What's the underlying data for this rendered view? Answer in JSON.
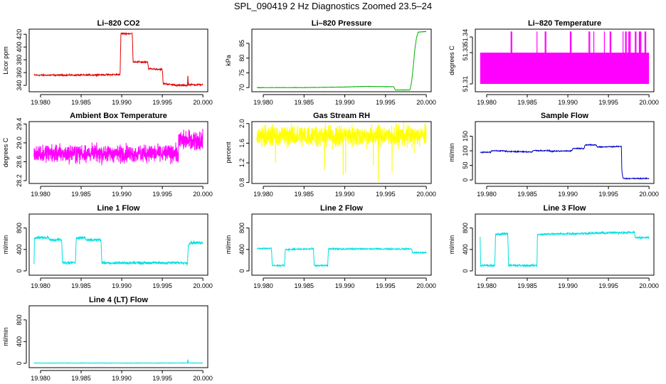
{
  "page_title": "SPL_090419  2 Hz Diagnostics Zoomed 23.5–24",
  "chart_data": [
    {
      "type": "line",
      "title": "Li–820 CO2",
      "ylabel": "Licor ppm",
      "color": "#e00000",
      "xlim": [
        19.9786,
        20.0006
      ],
      "ylim": [
        330,
        428
      ],
      "xticks": [
        "19.980",
        "19.985",
        "19.990",
        "19.995",
        "20.000"
      ],
      "xtick_values": [
        19.98,
        19.985,
        19.99,
        19.995,
        20.0
      ],
      "yticks": [
        "340",
        "360",
        "380",
        "400",
        "420"
      ],
      "ytick_values": [
        340,
        360,
        380,
        400,
        420
      ],
      "noise": 1.0,
      "series": [
        {
          "name": "CO2",
          "x": [
            19.9792,
            19.98,
            19.985,
            19.9898,
            19.9899,
            19.9913,
            19.9914,
            19.9932,
            19.9933,
            19.995,
            19.9951,
            19.9962,
            19.997,
            19.9981,
            19.99815,
            19.9982,
            20.0
          ],
          "y": [
            356,
            356,
            356,
            357,
            421,
            421,
            377,
            376,
            366,
            365,
            343,
            341,
            340,
            340,
            357,
            341,
            341
          ]
        }
      ]
    },
    {
      "type": "line",
      "title": "Li–820 Pressure",
      "ylabel": "kPa",
      "color": "#00b000",
      "xlim": [
        19.9786,
        20.0006
      ],
      "ylim": [
        68.6,
        89.8
      ],
      "xticks": [
        "19.980",
        "19.985",
        "19.990",
        "19.995",
        "20.000"
      ],
      "xtick_values": [
        19.98,
        19.985,
        19.99,
        19.995,
        20.0
      ],
      "yticks": [
        "70",
        "75",
        "80",
        "85"
      ],
      "ytick_values": [
        70,
        75,
        80,
        85
      ],
      "noise": 0.05,
      "series": [
        {
          "name": "Pressure",
          "x": [
            19.9792,
            19.985,
            19.99,
            19.9925,
            19.996,
            19.9962,
            19.998,
            19.9982,
            19.9984,
            19.9986,
            19.9988,
            19.999,
            20.0
          ],
          "y": [
            70,
            70,
            70.2,
            70.4,
            70.3,
            69.2,
            69.2,
            72,
            77,
            83,
            87,
            88.8,
            89
          ]
        }
      ]
    },
    {
      "type": "line",
      "title": "Li–820 Temperature",
      "ylabel": "degrees C",
      "color": "#ff00ff",
      "xlim": [
        19.9786,
        20.0006
      ],
      "ylim": [
        51.305,
        51.345
      ],
      "xticks": [
        "19.980",
        "19.985",
        "19.990",
        "19.995",
        "20.000"
      ],
      "xtick_values": [
        19.98,
        19.985,
        19.99,
        19.995,
        20.0
      ],
      "yticks": [
        "51.31",
        "51.33",
        "51.34"
      ],
      "ytick_values": [
        51.31,
        51.33,
        51.34
      ],
      "band": [
        51.31,
        51.33
      ],
      "spike_value": 51.3435,
      "spikes_x": [
        19.983,
        19.9831,
        19.9862,
        19.9872,
        19.9873,
        19.9903,
        19.9904,
        19.9926,
        19.9927,
        19.9932,
        19.9945,
        19.9952,
        19.9953,
        19.9968,
        19.9971,
        19.9972,
        19.9975,
        19.9976,
        19.9977,
        19.9983,
        19.9984,
        19.9988,
        19.9989,
        19.999,
        19.9995,
        19.9996
      ]
    },
    {
      "type": "line",
      "title": "Ambient Box Temperature",
      "ylabel": "degrees C",
      "color": "#ff00ff",
      "xlim": [
        19.9786,
        20.0006
      ],
      "ylim": [
        28.14,
        29.45
      ],
      "xticks": [
        "19.980",
        "19.985",
        "19.990",
        "19.995",
        "20.000"
      ],
      "xtick_values": [
        19.98,
        19.985,
        19.99,
        19.995,
        20.0
      ],
      "yticks": [
        "28.2",
        "28.6",
        "29.0",
        "29.4"
      ],
      "ytick_values": [
        28.2,
        28.6,
        29.0,
        29.4
      ],
      "band": [
        28.65,
        28.9
      ],
      "band_end": [
        28.9,
        29.2
      ],
      "noise": 0.16
    },
    {
      "type": "line",
      "title": "Gas Stream RH",
      "ylabel": "percent",
      "color": "#ffff00",
      "xlim": [
        19.9786,
        20.0006
      ],
      "ylim": [
        0.78,
        2.04
      ],
      "xticks": [
        "19.980",
        "19.985",
        "19.990",
        "19.995",
        "20.000"
      ],
      "xtick_values": [
        19.98,
        19.985,
        19.99,
        19.995,
        20.0
      ],
      "yticks": [
        "0.8",
        "1.2",
        "1.6",
        "2.0"
      ],
      "ytick_values": [
        0.8,
        1.2,
        1.6,
        2.0
      ],
      "band": [
        1.6,
        1.9
      ],
      "noise": 0.18,
      "dips": [
        [
          19.9815,
          1.2
        ],
        [
          19.9875,
          1.05
        ],
        [
          19.9898,
          0.95
        ],
        [
          19.9901,
          1.0
        ],
        [
          19.9935,
          1.15
        ],
        [
          19.9941,
          0.82
        ],
        [
          19.9958,
          1.0
        ],
        [
          19.9985,
          1.4
        ]
      ]
    },
    {
      "type": "line",
      "title": "Sample Flow",
      "ylabel": "ml/min",
      "color": "#0000cc",
      "xlim": [
        19.9786,
        20.0006
      ],
      "ylim": [
        -12,
        200
      ],
      "xticks": [
        "19.980",
        "19.985",
        "19.990",
        "19.995",
        "20.000"
      ],
      "xtick_values": [
        19.98,
        19.985,
        19.99,
        19.995,
        20.0
      ],
      "yticks": [
        "0",
        "50",
        "100",
        "150"
      ],
      "ytick_values": [
        0,
        50,
        100,
        150
      ],
      "noise": 1.5,
      "series": [
        {
          "name": "Sample Flow",
          "x": [
            19.9792,
            19.9805,
            19.9806,
            19.9822,
            19.9823,
            19.9856,
            19.9857,
            19.9878,
            19.9879,
            19.9905,
            19.9906,
            19.992,
            19.9921,
            19.9935,
            19.9936,
            19.9966,
            19.99665,
            19.9968,
            20.0
          ],
          "y": [
            95,
            95,
            100,
            100,
            98,
            96,
            101,
            100,
            98,
            100,
            108,
            108,
            120,
            120,
            113,
            115,
            30,
            5,
            5
          ]
        }
      ]
    },
    {
      "type": "line",
      "title": "Line 1 Flow",
      "ylabel": "ml/min",
      "color": "#00e0e0",
      "xlim": [
        19.9786,
        20.0006
      ],
      "ylim": [
        -80,
        1060
      ],
      "xticks": [
        "19.980",
        "19.985",
        "19.990",
        "19.995",
        "20.000"
      ],
      "xtick_values": [
        19.98,
        19.985,
        19.99,
        19.995,
        20.0
      ],
      "yticks": [
        "0",
        "400",
        "800"
      ],
      "ytick_values": [
        0,
        400,
        800
      ],
      "noise": 22,
      "series": [
        {
          "name": "Line 1",
          "x": [
            19.9792,
            19.97925,
            19.981,
            19.9811,
            19.9826,
            19.9827,
            19.9843,
            19.9844,
            19.9855,
            19.9856,
            19.98745,
            19.98755,
            19.9981,
            19.9982,
            19.9985,
            20.0
          ],
          "y": [
            150,
            620,
            620,
            580,
            580,
            150,
            150,
            620,
            620,
            580,
            580,
            150,
            150,
            480,
            530,
            520
          ]
        }
      ]
    },
    {
      "type": "line",
      "title": "Line 2 Flow",
      "ylabel": "ml/min",
      "color": "#00e0e0",
      "xlim": [
        19.9786,
        20.0006
      ],
      "ylim": [
        -80,
        1060
      ],
      "xticks": [
        "19.980",
        "19.985",
        "19.990",
        "19.995",
        "20.000"
      ],
      "xtick_values": [
        19.98,
        19.985,
        19.99,
        19.995,
        20.0
      ],
      "yticks": [
        "0",
        "400",
        "800"
      ],
      "ytick_values": [
        0,
        400,
        800
      ],
      "noise": 12,
      "series": [
        {
          "name": "Line 2",
          "x": [
            19.9792,
            19.981,
            19.9811,
            19.9826,
            19.9827,
            19.98615,
            19.98625,
            19.9879,
            19.988,
            19.9982,
            19.9983,
            20.0
          ],
          "y": [
            420,
            420,
            100,
            100,
            400,
            410,
            100,
            100,
            410,
            410,
            340,
            340
          ]
        }
      ]
    },
    {
      "type": "line",
      "title": "Line 3 Flow",
      "ylabel": "ml/min",
      "color": "#00e0e0",
      "xlim": [
        19.9786,
        20.0006
      ],
      "ylim": [
        -80,
        1060
      ],
      "xticks": [
        "19.980",
        "19.985",
        "19.990",
        "19.995",
        "20.000"
      ],
      "xtick_values": [
        19.98,
        19.985,
        19.99,
        19.995,
        20.0
      ],
      "yticks": [
        "0",
        "400",
        "800"
      ],
      "ytick_values": [
        0,
        400,
        800
      ],
      "noise": 18,
      "series": [
        {
          "name": "Line 3",
          "x": [
            19.9792,
            19.97925,
            19.9793,
            19.981,
            19.9811,
            19.9826,
            19.9827,
            19.9844,
            19.9845,
            19.9862,
            19.98625,
            19.9982,
            19.9983,
            20.0
          ],
          "y": [
            650,
            100,
            100,
            100,
            680,
            700,
            100,
            100,
            100,
            100,
            680,
            720,
            620,
            620
          ]
        }
      ]
    },
    {
      "type": "line",
      "title": "Line 4 (LT) Flow",
      "ylabel": "ml/min",
      "color": "#00e0e0",
      "xlim": [
        19.9786,
        20.0006
      ],
      "ylim": [
        -80,
        1060
      ],
      "xticks": [
        "19.980",
        "19.985",
        "19.990",
        "19.995",
        "20.000"
      ],
      "xtick_values": [
        19.98,
        19.985,
        19.99,
        19.995,
        20.0
      ],
      "yticks": [
        "0",
        "400",
        "800"
      ],
      "ytick_values": [
        0,
        400,
        800
      ],
      "noise": 3,
      "series": [
        {
          "name": "Line 4",
          "x": [
            19.9792,
            19.9981,
            19.99815,
            19.9982,
            20.0
          ],
          "y": [
            5,
            5,
            80,
            5,
            5
          ]
        }
      ]
    }
  ]
}
